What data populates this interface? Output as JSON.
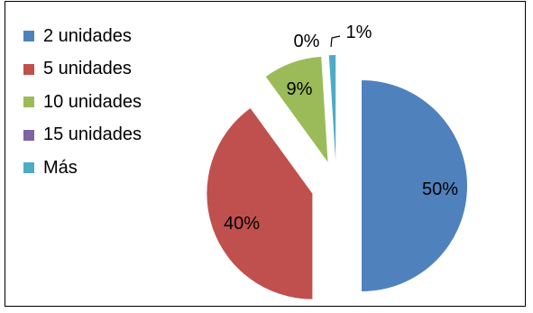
{
  "chart_data": {
    "type": "pie",
    "title": "",
    "categories": [
      "2 unidades",
      "5 unidades",
      "10 unidades",
      "15 unidades",
      "Más"
    ],
    "values": [
      50,
      40,
      9,
      0,
      1
    ],
    "value_labels": [
      "50%",
      "40%",
      "9%",
      "0%",
      "1%"
    ],
    "exploded": true,
    "legend": "left",
    "colors": [
      "#4F81BD",
      "#C0504D",
      "#9BBB59",
      "#8064A2",
      "#4BACC6"
    ]
  }
}
